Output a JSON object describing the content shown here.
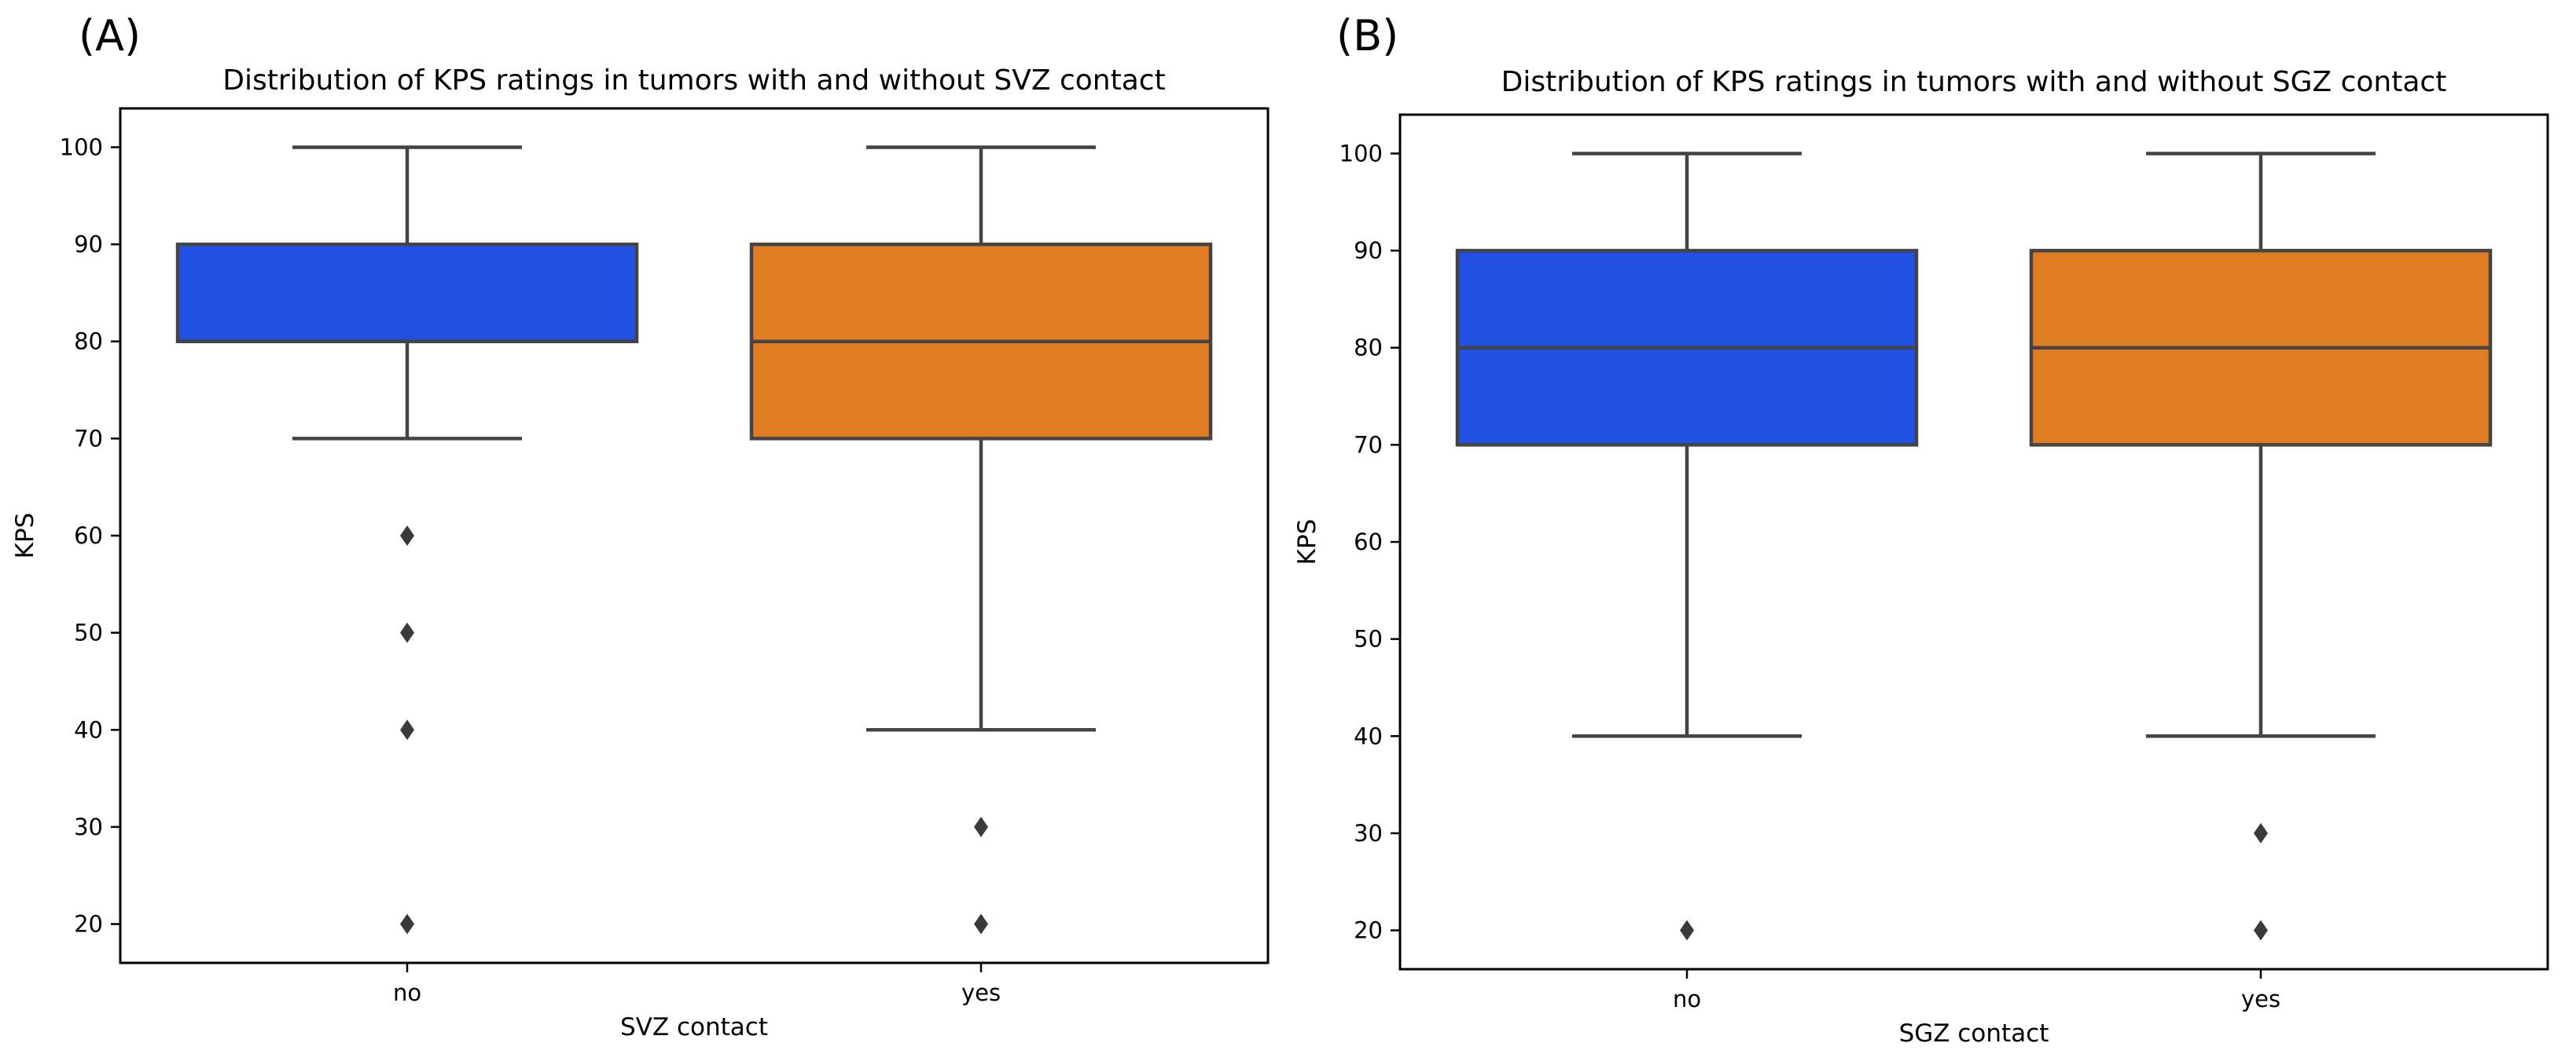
{
  "chart_data": [
    {
      "type": "box",
      "panel_label": "(A)",
      "title": "Distribution of KPS ratings in tumors with and without SVZ contact",
      "xlabel": "SVZ contact",
      "ylabel": "KPS",
      "categories": [
        "no",
        "yes"
      ],
      "yticks": [
        20,
        30,
        40,
        50,
        60,
        70,
        80,
        90,
        100
      ],
      "ylim": [
        16,
        104
      ],
      "grid": false,
      "boxes": [
        {
          "category": "no",
          "whisker_low": 70,
          "q1": 80,
          "median": 80,
          "q3": 90,
          "whisker_high": 100,
          "outliers": [
            60,
            50,
            40,
            20
          ],
          "color": "#2150e3"
        },
        {
          "category": "yes",
          "whisker_low": 40,
          "q1": 70,
          "median": 80,
          "q3": 90,
          "whisker_high": 100,
          "outliers": [
            30,
            20
          ],
          "color": "#e07c21"
        }
      ]
    },
    {
      "type": "box",
      "panel_label": "(B)",
      "title": "Distribution of KPS ratings in tumors with and without SGZ contact",
      "xlabel": "SGZ contact",
      "ylabel": "KPS",
      "categories": [
        "no",
        "yes"
      ],
      "yticks": [
        20,
        30,
        40,
        50,
        60,
        70,
        80,
        90,
        100
      ],
      "ylim": [
        16,
        104
      ],
      "grid": false,
      "boxes": [
        {
          "category": "no",
          "whisker_low": 40,
          "q1": 70,
          "median": 80,
          "q3": 90,
          "whisker_high": 100,
          "outliers": [
            20
          ],
          "color": "#2150e3"
        },
        {
          "category": "yes",
          "whisker_low": 40,
          "q1": 70,
          "median": 80,
          "q3": 90,
          "whisker_high": 100,
          "outliers": [
            30,
            20
          ],
          "color": "#e07c21"
        }
      ]
    }
  ],
  "colors": {
    "line": "#444444",
    "outlier": "#3a3a3a",
    "axis": "#000000"
  }
}
